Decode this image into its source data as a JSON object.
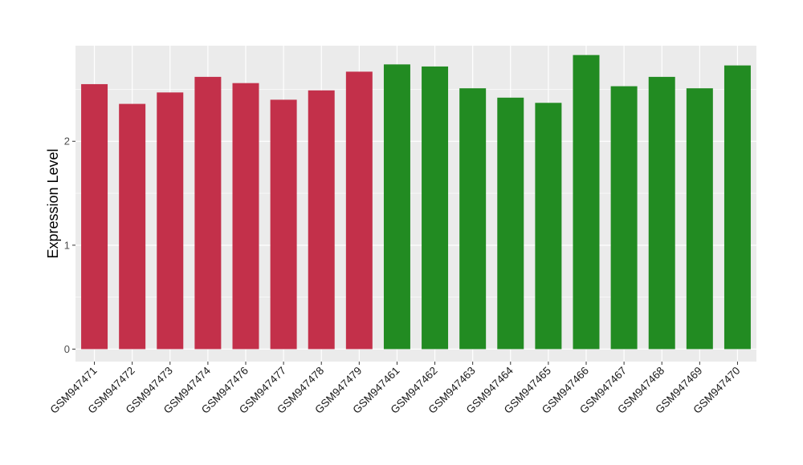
{
  "chart_data": {
    "type": "bar",
    "title": "",
    "xlabel": "",
    "ylabel": "Expression Level",
    "ylim": [
      -0.12,
      2.92
    ],
    "yticks": [
      0,
      1,
      2
    ],
    "grid": true,
    "categories": [
      "GSM947471",
      "GSM947472",
      "GSM947473",
      "GSM947474",
      "GSM947476",
      "GSM947477",
      "GSM947478",
      "GSM947479",
      "GSM947461",
      "GSM947462",
      "GSM947463",
      "GSM947464",
      "GSM947465",
      "GSM947466",
      "GSM947467",
      "GSM947468",
      "GSM947469",
      "GSM947470"
    ],
    "values": [
      2.55,
      2.36,
      2.47,
      2.62,
      2.56,
      2.4,
      2.49,
      2.67,
      2.74,
      2.72,
      2.51,
      2.42,
      2.37,
      2.83,
      2.53,
      2.62,
      2.51,
      2.73
    ],
    "bar_colors": [
      "#C3304A",
      "#C3304A",
      "#C3304A",
      "#C3304A",
      "#C3304A",
      "#C3304A",
      "#C3304A",
      "#C3304A",
      "#228B22",
      "#228B22",
      "#228B22",
      "#228B22",
      "#228B22",
      "#228B22",
      "#228B22",
      "#228B22",
      "#228B22",
      "#228B22"
    ],
    "panel_background": "#EBEBEB",
    "grid_color": "#FFFFFF"
  }
}
